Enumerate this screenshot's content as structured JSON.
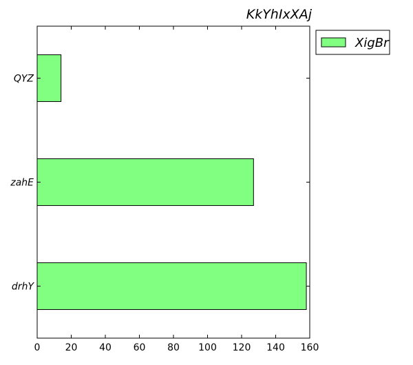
{
  "chart_data": {
    "type": "bar",
    "orientation": "horizontal",
    "title": "KkYhIxXAj",
    "xlabel": "",
    "ylabel": "",
    "categories": [
      "drhY",
      "zahE",
      "QYZ"
    ],
    "series": [
      {
        "name": "XigBr",
        "values": [
          158,
          127,
          14
        ],
        "color": "#80ff80"
      }
    ],
    "xlim": [
      0,
      160
    ],
    "xticks": [
      0,
      20,
      40,
      60,
      80,
      100,
      120,
      140,
      160
    ],
    "grid": false,
    "legend_position": "outside-top-right"
  }
}
